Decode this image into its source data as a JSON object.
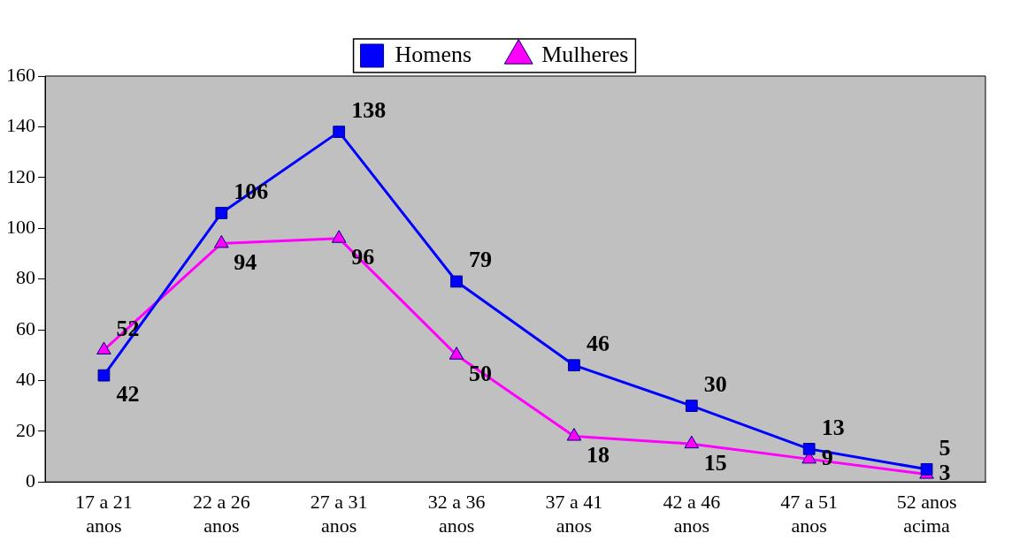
{
  "chart_data": {
    "type": "line",
    "categories": [
      "17 a 21 anos",
      "22 a 26 anos",
      "27 a 31 anos",
      "32 a 36 anos",
      "37 a 41 anos",
      "42 a 46 anos",
      "47 a 51 anos",
      "52 anos acima"
    ],
    "series": [
      {
        "name": "Homens",
        "color": "#0000ff",
        "marker": "square",
        "values": [
          42,
          106,
          138,
          79,
          46,
          30,
          13,
          5
        ]
      },
      {
        "name": "Mulheres",
        "color": "#ff00ff",
        "marker": "triangle",
        "values": [
          52,
          94,
          96,
          50,
          18,
          15,
          9,
          3
        ]
      }
    ],
    "ylim": [
      0,
      160
    ],
    "yticks": [
      0,
      20,
      40,
      60,
      80,
      100,
      120,
      140,
      160
    ],
    "grid": false,
    "legend": "top",
    "data_labels": true,
    "line_style": "solid"
  }
}
